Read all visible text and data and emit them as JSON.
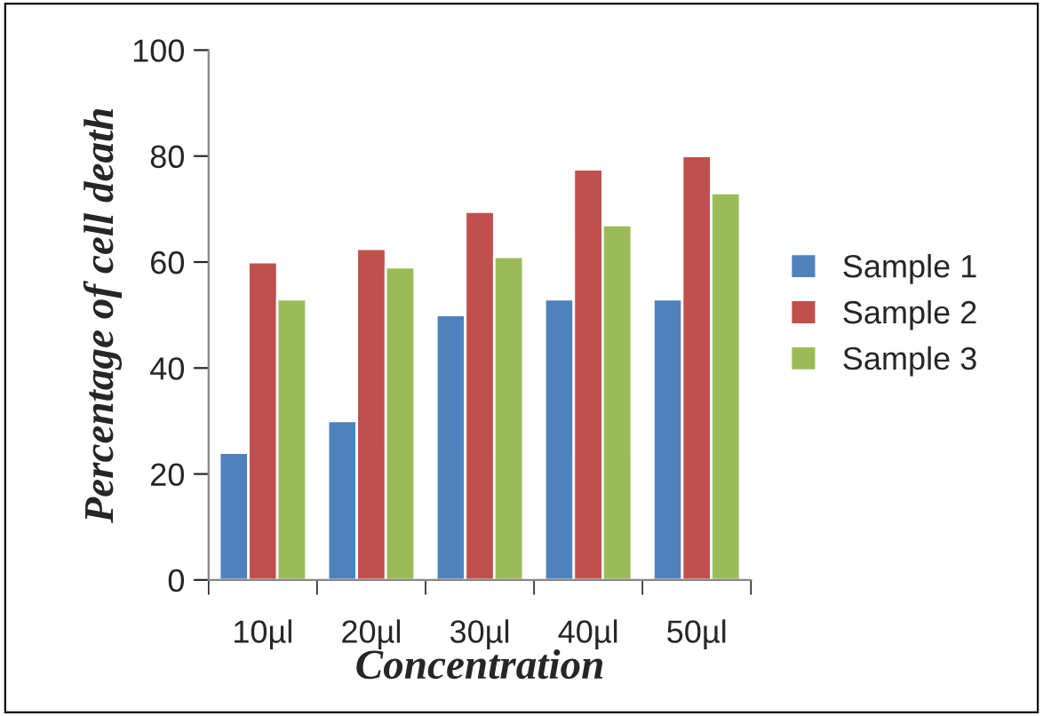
{
  "chart_data": {
    "type": "bar",
    "xlabel": "Concentration",
    "ylabel": "Percentage of cell death",
    "categories": [
      "10µl",
      "20µl",
      "30µl",
      "40µl",
      "50µl"
    ],
    "series": [
      {
        "name": "Sample 1",
        "color": "#4f81bd",
        "values": [
          24,
          30,
          50,
          53,
          53
        ]
      },
      {
        "name": "Sample 2",
        "color": "#c0504d",
        "values": [
          60,
          62.5,
          69.5,
          77.5,
          80
        ]
      },
      {
        "name": "Sample 3",
        "color": "#9bbb59",
        "values": [
          53,
          59,
          61,
          67,
          73
        ]
      }
    ],
    "ylim": [
      0,
      100
    ],
    "yticks": [
      0,
      20,
      40,
      60,
      80,
      100
    ],
    "grid": false,
    "legend": "right"
  }
}
